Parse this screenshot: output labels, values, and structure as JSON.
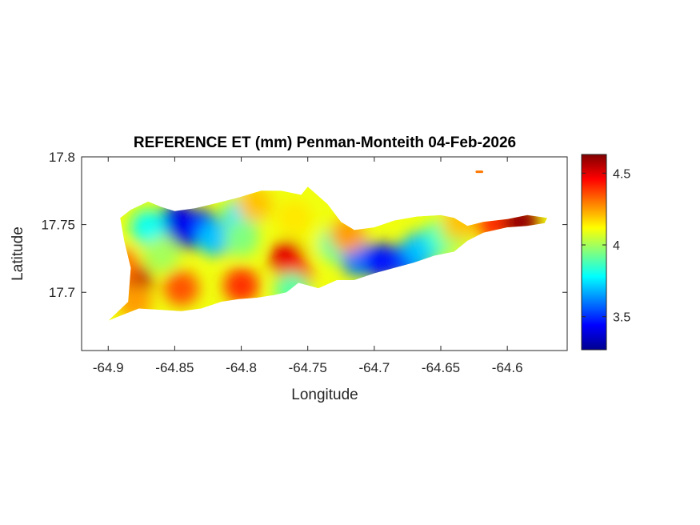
{
  "title": "REFERENCE ET (mm) Penman-Monteith 04-Feb-2026",
  "xlabel": "Longitude",
  "ylabel": "Latitude",
  "x_ticks": [
    "-64.9",
    "-64.85",
    "-64.8",
    "-64.75",
    "-64.7",
    "-64.65",
    "-64.6"
  ],
  "y_ticks": [
    "17.8",
    "17.75",
    "17.7"
  ],
  "colorbar": {
    "colormap": "jet",
    "range": [
      3.27,
      4.63
    ],
    "ticks": [
      "4.5",
      "4",
      "3.5"
    ]
  },
  "chart_data": {
    "type": "heatmap",
    "title": "REFERENCE ET (mm) Penman-Monteith 04-Feb-2026",
    "xlabel": "Longitude",
    "ylabel": "Latitude",
    "xlim": [
      -64.92,
      -64.555
    ],
    "ylim": [
      17.657,
      17.8
    ],
    "x_ticks": [
      -64.9,
      -64.85,
      -64.8,
      -64.75,
      -64.7,
      -64.65,
      -64.6
    ],
    "y_ticks": [
      17.8,
      17.75,
      17.7
    ],
    "color_range": [
      3.27,
      4.63
    ],
    "colorbar_ticks": [
      4.5,
      4,
      3.5
    ],
    "grid": false,
    "outline_lonlat": [
      [
        -64.9,
        17.679
      ],
      [
        -64.885,
        17.693
      ],
      [
        -64.883,
        17.718
      ],
      [
        -64.888,
        17.738
      ],
      [
        -64.891,
        17.755
      ],
      [
        -64.883,
        17.761
      ],
      [
        -64.87,
        17.767
      ],
      [
        -64.86,
        17.763
      ],
      [
        -64.85,
        17.76
      ],
      [
        -64.835,
        17.762
      ],
      [
        -64.818,
        17.766
      ],
      [
        -64.802,
        17.77
      ],
      [
        -64.785,
        17.775
      ],
      [
        -64.77,
        17.775
      ],
      [
        -64.755,
        17.772
      ],
      [
        -64.75,
        17.778
      ],
      [
        -64.743,
        17.772
      ],
      [
        -64.735,
        17.765
      ],
      [
        -64.725,
        17.752
      ],
      [
        -64.715,
        17.746
      ],
      [
        -64.7,
        17.748
      ],
      [
        -64.685,
        17.753
      ],
      [
        -64.668,
        17.756
      ],
      [
        -64.65,
        17.757
      ],
      [
        -64.64,
        17.755
      ],
      [
        -64.63,
        17.749
      ],
      [
        -64.618,
        17.752
      ],
      [
        -64.6,
        17.754
      ],
      [
        -64.585,
        17.757
      ],
      [
        -64.57,
        17.755
      ],
      [
        -64.572,
        17.751
      ],
      [
        -64.585,
        17.749
      ],
      [
        -64.6,
        17.748
      ],
      [
        -64.618,
        17.744
      ],
      [
        -64.63,
        17.738
      ],
      [
        -64.64,
        17.73
      ],
      [
        -64.655,
        17.727
      ],
      [
        -64.67,
        17.722
      ],
      [
        -64.685,
        17.718
      ],
      [
        -64.7,
        17.714
      ],
      [
        -64.715,
        17.709
      ],
      [
        -64.728,
        17.709
      ],
      [
        -64.742,
        17.703
      ],
      [
        -64.757,
        17.707
      ],
      [
        -64.766,
        17.7
      ],
      [
        -64.775,
        17.698
      ],
      [
        -64.788,
        17.696
      ],
      [
        -64.802,
        17.695
      ],
      [
        -64.815,
        17.693
      ],
      [
        -64.83,
        17.688
      ],
      [
        -64.845,
        17.686
      ],
      [
        -64.86,
        17.687
      ],
      [
        -64.877,
        17.688
      ],
      [
        -64.89,
        17.683
      ]
    ],
    "islet_lonlat": [
      [
        -64.623,
        17.789
      ],
      [
        -64.619,
        17.789
      ]
    ],
    "value_samples": [
      {
        "lon": -64.84,
        "lat": 17.745,
        "value": 3.3
      },
      {
        "lon": -64.848,
        "lat": 17.753,
        "value": 3.4
      },
      {
        "lon": -64.83,
        "lat": 17.748,
        "value": 3.45
      },
      {
        "lon": -64.8,
        "lat": 17.757,
        "value": 3.75
      },
      {
        "lon": -64.82,
        "lat": 17.74,
        "value": 3.7
      },
      {
        "lon": -64.87,
        "lat": 17.748,
        "value": 3.8
      },
      {
        "lon": -64.8,
        "lat": 17.74,
        "value": 3.95
      },
      {
        "lon": -64.86,
        "lat": 17.728,
        "value": 4.0
      },
      {
        "lon": -64.79,
        "lat": 17.765,
        "value": 4.2
      },
      {
        "lon": -64.88,
        "lat": 17.708,
        "value": 4.55
      },
      {
        "lon": -64.845,
        "lat": 17.703,
        "value": 4.35
      },
      {
        "lon": -64.8,
        "lat": 17.705,
        "value": 4.4
      },
      {
        "lon": -64.765,
        "lat": 17.725,
        "value": 4.5
      },
      {
        "lon": -64.76,
        "lat": 17.712,
        "value": 4.45
      },
      {
        "lon": -64.742,
        "lat": 17.74,
        "value": 4.1
      },
      {
        "lon": -64.728,
        "lat": 17.735,
        "value": 3.9
      },
      {
        "lon": -64.712,
        "lat": 17.725,
        "value": 3.6
      },
      {
        "lon": -64.695,
        "lat": 17.723,
        "value": 3.45
      },
      {
        "lon": -64.675,
        "lat": 17.724,
        "value": 3.5
      },
      {
        "lon": -64.665,
        "lat": 17.732,
        "value": 3.7
      },
      {
        "lon": -64.65,
        "lat": 17.74,
        "value": 3.85
      },
      {
        "lon": -64.64,
        "lat": 17.744,
        "value": 4.0
      },
      {
        "lon": -64.72,
        "lat": 17.742,
        "value": 4.25
      },
      {
        "lon": -64.635,
        "lat": 17.752,
        "value": 4.2
      },
      {
        "lon": -64.61,
        "lat": 17.751,
        "value": 4.4
      },
      {
        "lon": -64.59,
        "lat": 17.752,
        "value": 4.6
      },
      {
        "lon": -64.76,
        "lat": 17.755,
        "value": 4.15
      },
      {
        "lon": -64.89,
        "lat": 17.72,
        "value": 4.3
      },
      {
        "lon": -64.88,
        "lat": 17.693,
        "value": 4.25
      },
      {
        "lon": -64.762,
        "lat": 17.702,
        "value": 3.9
      }
    ]
  }
}
